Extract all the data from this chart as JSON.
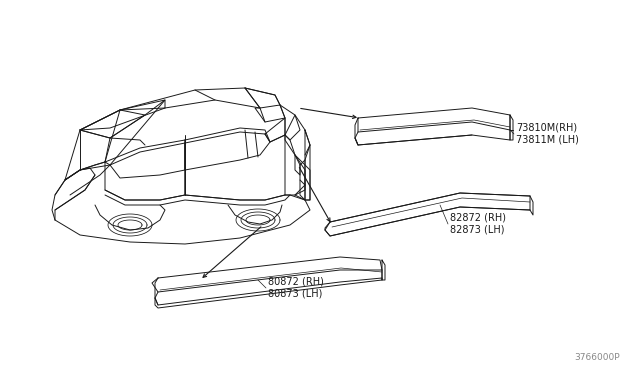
{
  "bg_color": "#ffffff",
  "line_color": "#1a1a1a",
  "label_color": "#1a1a1a",
  "diagram_id": "3766000P",
  "labels": {
    "top_moulding_0": "73810M(RH)",
    "top_moulding_1": "73811M (LH)",
    "rear_door_0": "82872 (RH)",
    "rear_door_1": "82873 (LH)",
    "front_door_0": "80872 (RH)",
    "front_door_1": "80873 (LH)"
  },
  "figsize": [
    6.4,
    3.72
  ],
  "dpi": 100
}
